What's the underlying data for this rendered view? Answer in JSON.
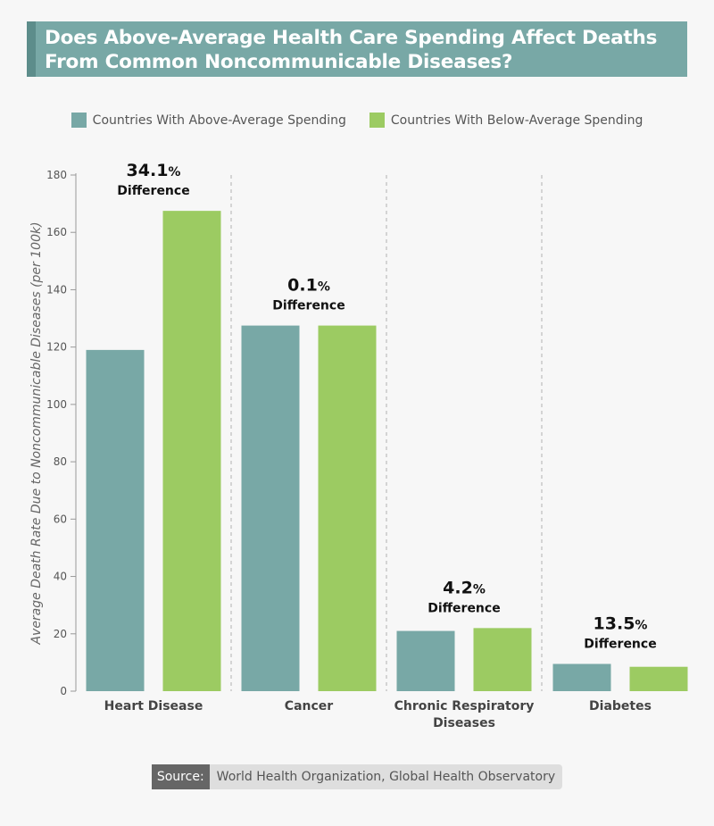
{
  "title": "Does Above-Average Health Care Spending Affect Deaths From Common Noncommunicable Diseases?",
  "legend": [
    {
      "label": "Countries With Above-Average Spending",
      "color": "#78a8a6"
    },
    {
      "label": "Countries With Below-Average Spending",
      "color": "#9ccb62"
    }
  ],
  "source": {
    "label": "Source:",
    "text": "World Health Organization, Global Health Observatory"
  },
  "chart_data": {
    "type": "bar",
    "categories": [
      "Heart Disease",
      "Cancer",
      "Chronic Respiratory Diseases",
      "Diabetes"
    ],
    "series": [
      {
        "name": "Countries With Above-Average Spending",
        "values": [
          119,
          127.5,
          21,
          9.5
        ],
        "color": "#78a8a6"
      },
      {
        "name": "Countries With Below-Average Spending",
        "values": [
          167.5,
          127.5,
          22,
          8.5
        ],
        "color": "#9ccb62"
      }
    ],
    "differences": [
      "34.1",
      "0.1",
      "4.2",
      "13.5"
    ],
    "difference_unit": "%",
    "difference_label": "Difference",
    "ylabel": "Average Death Rate Due to Noncommunicable Diseases (per 100k)",
    "ylim": [
      0,
      180
    ],
    "yticks": [
      0,
      20,
      40,
      60,
      80,
      100,
      120,
      140,
      160,
      180
    ]
  }
}
